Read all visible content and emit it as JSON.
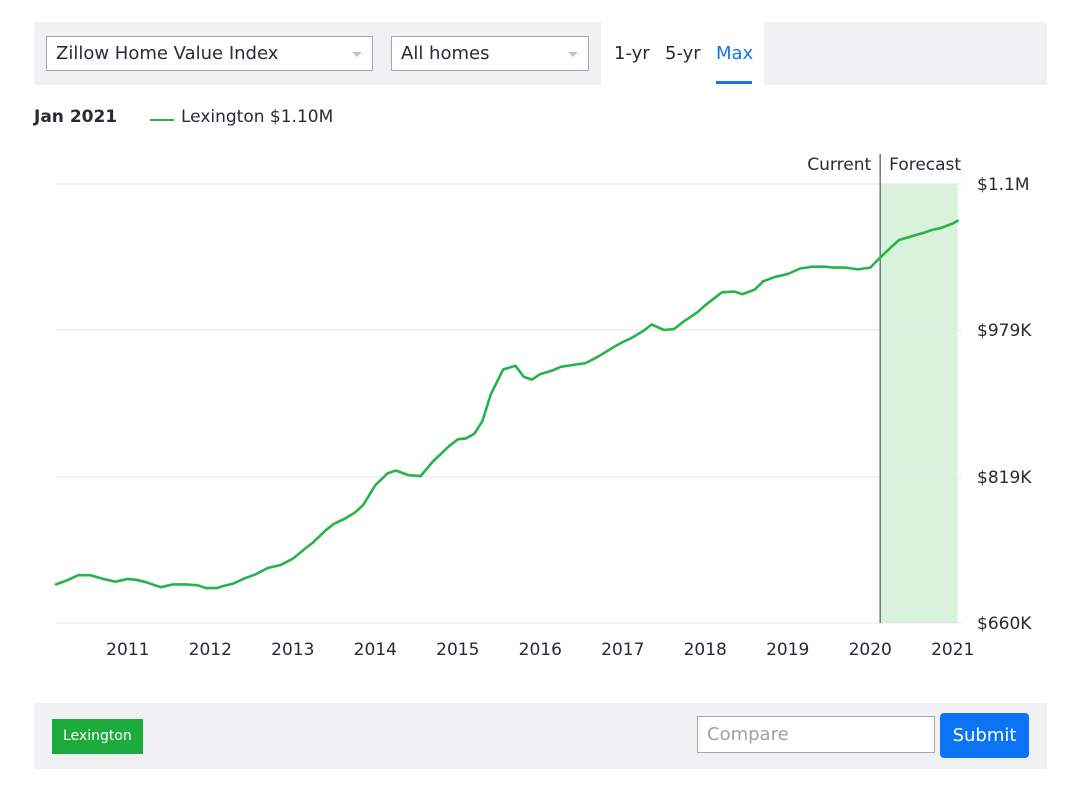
{
  "controls": {
    "index_select": "Zillow Home Value Index",
    "home_type_select": "All homes",
    "ranges": [
      "1-yr",
      "5-yr",
      "Max"
    ],
    "active_range": "Max"
  },
  "legend": {
    "date": "Jan 2021",
    "series_label": "Lexington $1.10M"
  },
  "footer": {
    "region_tag": "Lexington",
    "compare_placeholder": "Compare",
    "submit_label": "Submit"
  },
  "colors": {
    "series": "#27b34a",
    "forecast_fill": "#d8f2dc",
    "accent": "#1277e1",
    "tag": "#1eab3d",
    "submit": "#0a74f5"
  },
  "chart_data": {
    "type": "line",
    "title": "",
    "xlabel": "",
    "ylabel": "",
    "y_tick_labels": [
      "$660K",
      "$819K",
      "$979K",
      "$1.1M"
    ],
    "y_ticks": [
      660000,
      819000,
      979000,
      1138000
    ],
    "ylim": [
      660000,
      1138000
    ],
    "x_tick_labels": [
      "2011",
      "2012",
      "2013",
      "2014",
      "2015",
      "2016",
      "2017",
      "2018",
      "2019",
      "2020",
      "2021"
    ],
    "x_ticks": [
      2011,
      2012,
      2013,
      2014,
      2015,
      2016,
      2017,
      2018,
      2019,
      2020,
      2021
    ],
    "xlim": [
      2010.13,
      2021.1
    ],
    "divider_x": 2020.12,
    "divider_labels": {
      "left": "Current",
      "right": "Forecast"
    },
    "forecast_range": [
      2020.12,
      2021.06
    ],
    "grid": true,
    "legend_position": "top-left",
    "series": [
      {
        "name": "Lexington",
        "x": [
          2010.13,
          2010.25,
          2010.4,
          2010.55,
          2010.7,
          2010.85,
          2011.0,
          2011.1,
          2011.2,
          2011.4,
          2011.55,
          2011.7,
          2011.85,
          2011.95,
          2012.08,
          2012.15,
          2012.28,
          2012.4,
          2012.55,
          2012.7,
          2012.85,
          2013.0,
          2013.15,
          2013.25,
          2013.4,
          2013.5,
          2013.62,
          2013.75,
          2013.85,
          2014.0,
          2014.15,
          2014.25,
          2014.4,
          2014.55,
          2014.7,
          2014.9,
          2015.0,
          2015.1,
          2015.2,
          2015.3,
          2015.4,
          2015.55,
          2015.7,
          2015.8,
          2015.9,
          2016.0,
          2016.15,
          2016.25,
          2016.4,
          2016.55,
          2016.7,
          2016.9,
          2017.0,
          2017.1,
          2017.25,
          2017.35,
          2017.5,
          2017.62,
          2017.75,
          2017.9,
          2018.0,
          2018.1,
          2018.2,
          2018.35,
          2018.45,
          2018.6,
          2018.7,
          2018.85,
          2019.0,
          2019.15,
          2019.3,
          2019.45,
          2019.55,
          2019.7,
          2019.85,
          2020.0,
          2020.12,
          2020.25,
          2020.35,
          2020.5,
          2020.65,
          2020.75,
          2020.85,
          2021.0,
          2021.06
        ],
        "values": [
          702000,
          706000,
          712000,
          712000,
          708000,
          705000,
          708000,
          707000,
          705000,
          699000,
          702000,
          702000,
          701000,
          698000,
          698000,
          700000,
          703000,
          708000,
          713000,
          720000,
          723000,
          730000,
          741000,
          748000,
          761000,
          768000,
          773000,
          780000,
          788000,
          810000,
          823000,
          826000,
          821000,
          820000,
          836000,
          853000,
          860000,
          861000,
          866000,
          880000,
          909000,
          936000,
          940000,
          928000,
          925000,
          931000,
          935000,
          939000,
          941000,
          943000,
          950000,
          961000,
          966000,
          970000,
          978000,
          985000,
          979000,
          980000,
          989000,
          998000,
          1006000,
          1013000,
          1020000,
          1021000,
          1018000,
          1023000,
          1032000,
          1037000,
          1040000,
          1046000,
          1048000,
          1048000,
          1047000,
          1047000,
          1045000,
          1047000,
          1058000,
          1069000,
          1077000,
          1081000,
          1085000,
          1088000,
          1090000,
          1095000,
          1098000
        ]
      }
    ]
  }
}
